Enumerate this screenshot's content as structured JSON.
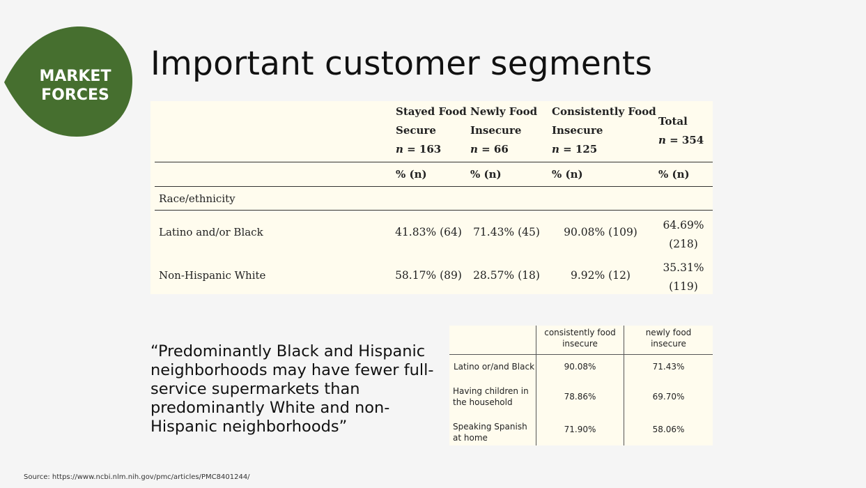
{
  "badge": {
    "line1": "MARKET",
    "line2": "FORCES",
    "color": "#466f2f"
  },
  "slide": {
    "title": "Important customer segments"
  },
  "main_table": {
    "columns": [
      {
        "line1": "Stayed Food",
        "line2": "Secure",
        "n_label": "n",
        "n_value": "= 163",
        "unit": "% (n)"
      },
      {
        "line1": "Newly Food",
        "line2": "Insecure",
        "n_label": "n",
        "n_value": "= 66",
        "unit": "% (n)"
      },
      {
        "line1": "Consistently Food",
        "line2": "Insecure",
        "n_label": "n",
        "n_value": "= 125",
        "unit": "% (n)"
      },
      {
        "line1": "Total",
        "line2": "",
        "n_label": "n",
        "n_value": "= 354",
        "unit": "% (n)"
      }
    ],
    "section": "Race/ethnicity",
    "rows": [
      {
        "label": "Latino and/or Black",
        "values": [
          "41.83% (64)",
          "71.43% (45)",
          "90.08% (109)"
        ],
        "total_pct": "64.69%",
        "total_n": "(218)"
      },
      {
        "label": "Non-Hispanic White",
        "values": [
          "58.17% (89)",
          "28.57% (18)",
          "9.92% (12)"
        ],
        "total_pct": "35.31%",
        "total_n": "(119)"
      }
    ]
  },
  "quote": "“Predominantly Black and Hispanic neighborhoods may have fewer full-service supermarkets than predominantly White and non-Hispanic neighborhoods”",
  "small_table": {
    "headers": [
      {
        "line1": "consistently food",
        "line2": "insecure"
      },
      {
        "line1": "newly food",
        "line2": "insecure"
      }
    ],
    "rows": [
      {
        "line1": "Latino or/and Black",
        "line2": "",
        "values": [
          "90.08%",
          "71.43%"
        ]
      },
      {
        "line1": "Having children in",
        "line2": "the household",
        "values": [
          "78.86%",
          "69.70%"
        ]
      },
      {
        "line1": "Speaking Spanish",
        "line2": "at home",
        "values": [
          "71.90%",
          "58.06%"
        ]
      }
    ]
  },
  "source": "Source: https://www.ncbi.nlm.nih.gov/pmc/articles/PMC8401244/"
}
